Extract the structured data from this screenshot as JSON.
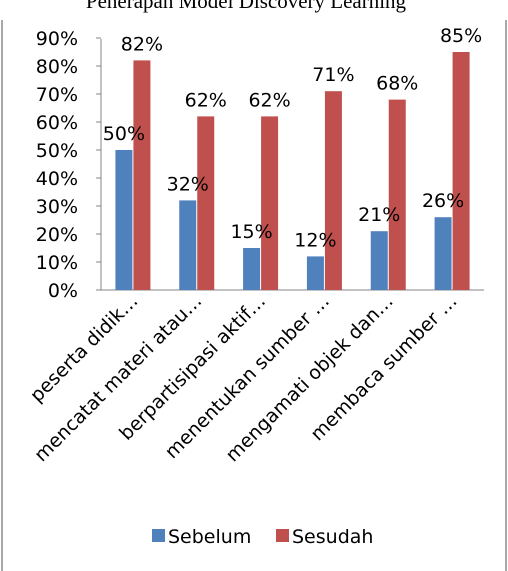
{
  "chart_data": {
    "type": "bar",
    "title": "Penerapan Model Discovery Learning",
    "categories": [
      "peserta didik…",
      "mencatat materi atau…",
      "berpartisipasi aktif…",
      "menentukan sumber …",
      "mengamati objek dan…",
      "membaca sumber …"
    ],
    "series": [
      {
        "name": "Sebelum",
        "values": [
          50,
          32,
          15,
          12,
          21,
          26
        ],
        "labels": [
          "50%",
          "32%",
          "15%",
          "12%",
          "21%",
          "26%"
        ],
        "color": "#4f81bd"
      },
      {
        "name": "Sesudah",
        "values": [
          82,
          62,
          62,
          71,
          68,
          85
        ],
        "labels": [
          "82%",
          "62%",
          "62%",
          "71%",
          "68%",
          "85%"
        ],
        "color": "#c0504d"
      }
    ],
    "ylim": [
      0,
      90
    ],
    "yticks": [
      "0%",
      "10%",
      "20%",
      "30%",
      "40%",
      "50%",
      "60%",
      "70%",
      "80%",
      "90%"
    ],
    "xlabel": "",
    "ylabel": "",
    "grid": false,
    "legend_position": "bottom"
  }
}
